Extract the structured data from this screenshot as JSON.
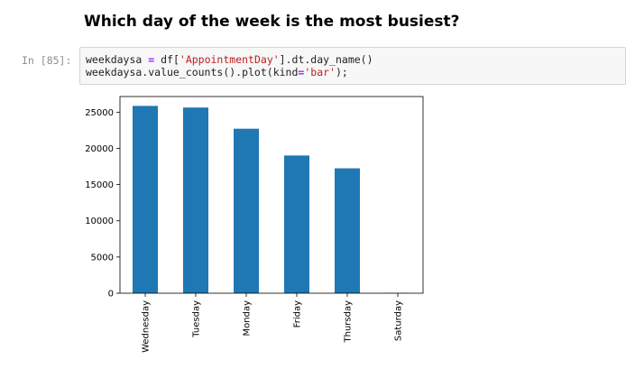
{
  "heading": "Which day of the week is the most busiest?",
  "cell": {
    "prompt": "In [85]:",
    "line1": {
      "a": "weekdaysa ",
      "eq": "=",
      "b": " df[",
      "str": "'AppointmentDay'",
      "c": "].dt.day_name()"
    },
    "line2": {
      "a": "weekdaysa.value_counts().plot(kind",
      "eq": "=",
      "str": "'bar'",
      "c": ");"
    }
  },
  "chart_data": {
    "type": "bar",
    "categories": [
      "Wednesday",
      "Tuesday",
      "Monday",
      "Friday",
      "Thursday",
      "Saturday"
    ],
    "values": [
      25867,
      25640,
      22715,
      19019,
      17247,
      39
    ],
    "yticks": [
      0,
      5000,
      10000,
      15000,
      20000,
      25000
    ],
    "ylim": [
      0,
      27160
    ],
    "color": "#1f77b4",
    "title": "",
    "xlabel": "",
    "ylabel": ""
  }
}
